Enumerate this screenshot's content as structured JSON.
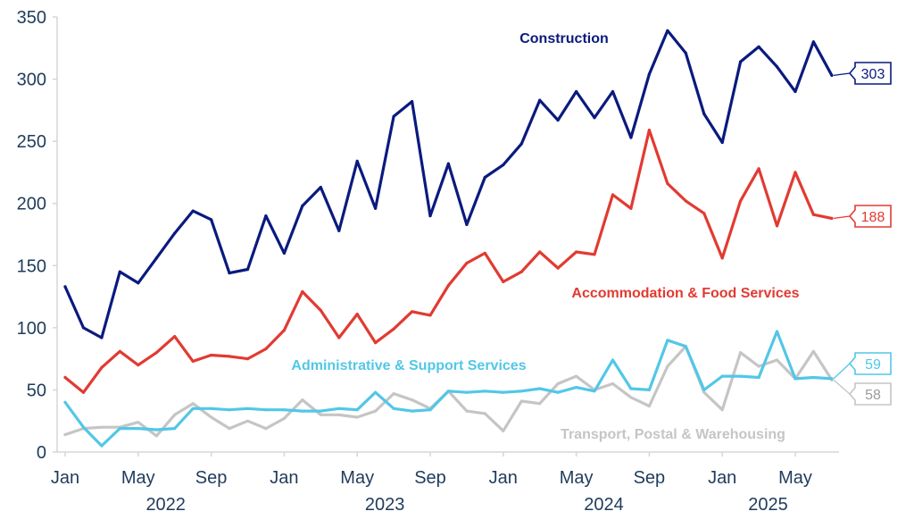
{
  "chart_data": {
    "type": "line",
    "ylim": [
      0,
      350
    ],
    "yticks": [
      0,
      50,
      100,
      150,
      200,
      250,
      300,
      350
    ],
    "x": [
      "2022-01",
      "2022-02",
      "2022-03",
      "2022-04",
      "2022-05",
      "2022-06",
      "2022-07",
      "2022-08",
      "2022-09",
      "2022-10",
      "2022-11",
      "2022-12",
      "2023-01",
      "2023-02",
      "2023-03",
      "2023-04",
      "2023-05",
      "2023-06",
      "2023-07",
      "2023-08",
      "2023-09",
      "2023-10",
      "2023-11",
      "2023-12",
      "2024-01",
      "2024-02",
      "2024-03",
      "2024-04",
      "2024-05",
      "2024-06",
      "2024-07",
      "2024-08",
      "2024-09",
      "2024-10",
      "2024-11",
      "2024-12",
      "2025-01",
      "2025-02",
      "2025-03",
      "2025-04",
      "2025-05",
      "2025-06",
      "2025-07"
    ],
    "month_ticks": [
      {
        "month": "2022-01",
        "label": "Jan"
      },
      {
        "month": "2022-05",
        "label": "May"
      },
      {
        "month": "2022-09",
        "label": "Sep"
      },
      {
        "month": "2023-01",
        "label": "Jan"
      },
      {
        "month": "2023-05",
        "label": "May"
      },
      {
        "month": "2023-09",
        "label": "Sep"
      },
      {
        "month": "2024-01",
        "label": "Jan"
      },
      {
        "month": "2024-05",
        "label": "May"
      },
      {
        "month": "2024-09",
        "label": "Sep"
      },
      {
        "month": "2025-01",
        "label": "Jan"
      },
      {
        "month": "2025-05",
        "label": "May"
      }
    ],
    "year_labels": [
      {
        "label": "2022",
        "month": "2022-07"
      },
      {
        "label": "2023",
        "month": "2023-07"
      },
      {
        "label": "2024",
        "month": "2024-07"
      },
      {
        "label": "2025",
        "month": "2025-04"
      }
    ],
    "series": [
      {
        "name": "Construction",
        "color": "#0a1a7e",
        "end_value": "303",
        "values": [
          133,
          100,
          92,
          145,
          136,
          156,
          176,
          194,
          187,
          144,
          147,
          190,
          160,
          198,
          213,
          178,
          234,
          196,
          270,
          282,
          190,
          232,
          183,
          221,
          231,
          248,
          283,
          267,
          290,
          269,
          290,
          253,
          304,
          339,
          321,
          272,
          249,
          314,
          326,
          310,
          290,
          330,
          303
        ]
      },
      {
        "name": "Accommodation & Food Services",
        "color": "#e23a31",
        "end_value": "188",
        "values": [
          60,
          48,
          68,
          81,
          70,
          80,
          93,
          73,
          78,
          77,
          75,
          83,
          98,
          129,
          114,
          92,
          111,
          88,
          99,
          113,
          110,
          134,
          152,
          160,
          137,
          145,
          161,
          148,
          161,
          159,
          207,
          196,
          259,
          216,
          202,
          192,
          156,
          202,
          228,
          182,
          225,
          191,
          188
        ]
      },
      {
        "name": "Administrative & Support Services",
        "color": "#52c7e7",
        "end_value": "59",
        "values": [
          40,
          20,
          5,
          19,
          19,
          18,
          19,
          35,
          35,
          34,
          35,
          34,
          34,
          33,
          33,
          35,
          34,
          48,
          35,
          33,
          34,
          49,
          48,
          49,
          48,
          49,
          51,
          48,
          52,
          49,
          74,
          51,
          50,
          90,
          85,
          50,
          61,
          61,
          60,
          97,
          59,
          60,
          59
        ]
      },
      {
        "name": "Transport, Postal & Warehousing",
        "color": "#c5c5c5",
        "end_value": "58",
        "values": [
          14,
          19,
          20,
          20,
          24,
          13,
          30,
          39,
          28,
          19,
          25,
          19,
          27,
          42,
          30,
          30,
          28,
          33,
          47,
          42,
          35,
          49,
          33,
          31,
          17,
          41,
          39,
          55,
          61,
          50,
          55,
          44,
          37,
          69,
          85,
          48,
          34,
          80,
          69,
          74,
          59,
          81,
          58
        ]
      }
    ]
  }
}
